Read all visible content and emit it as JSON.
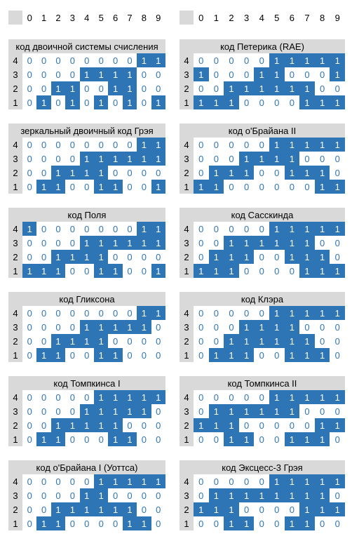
{
  "column_headers": [
    0,
    1,
    2,
    3,
    4,
    5,
    6,
    7,
    8,
    9
  ],
  "blocks": [
    {
      "title": "код двоичной системы счисления",
      "rows": [
        {
          "label": 4,
          "cells": [
            0,
            0,
            0,
            0,
            0,
            0,
            0,
            0,
            1,
            1
          ]
        },
        {
          "label": 3,
          "cells": [
            0,
            0,
            0,
            0,
            1,
            1,
            1,
            1,
            0,
            0
          ]
        },
        {
          "label": 2,
          "cells": [
            0,
            0,
            1,
            1,
            0,
            0,
            1,
            1,
            0,
            0
          ]
        },
        {
          "label": 1,
          "cells": [
            0,
            1,
            0,
            1,
            0,
            1,
            0,
            1,
            0,
            1
          ]
        }
      ]
    },
    {
      "title": "код Петерика (RAE)",
      "rows": [
        {
          "label": 4,
          "cells": [
            0,
            0,
            0,
            0,
            0,
            1,
            1,
            1,
            1,
            1
          ]
        },
        {
          "label": 3,
          "cells": [
            1,
            0,
            0,
            0,
            1,
            1,
            0,
            0,
            0,
            1
          ]
        },
        {
          "label": 2,
          "cells": [
            0,
            0,
            1,
            1,
            1,
            1,
            1,
            1,
            0,
            0
          ]
        },
        {
          "label": 1,
          "cells": [
            1,
            1,
            1,
            0,
            0,
            0,
            0,
            1,
            1,
            1
          ]
        }
      ]
    },
    {
      "title": "зеркальный двоичный код Грэя",
      "rows": [
        {
          "label": 4,
          "cells": [
            0,
            0,
            0,
            0,
            0,
            0,
            0,
            0,
            1,
            1
          ]
        },
        {
          "label": 3,
          "cells": [
            0,
            0,
            0,
            0,
            1,
            1,
            1,
            1,
            1,
            1
          ]
        },
        {
          "label": 2,
          "cells": [
            0,
            0,
            1,
            1,
            1,
            1,
            0,
            0,
            0,
            0
          ]
        },
        {
          "label": 1,
          "cells": [
            0,
            1,
            1,
            0,
            0,
            1,
            1,
            0,
            0,
            1
          ]
        }
      ]
    },
    {
      "title": "код о'Брайана II",
      "rows": [
        {
          "label": 4,
          "cells": [
            0,
            0,
            0,
            0,
            0,
            1,
            1,
            1,
            1,
            1
          ]
        },
        {
          "label": 3,
          "cells": [
            0,
            0,
            0,
            1,
            1,
            1,
            1,
            0,
            0,
            0
          ]
        },
        {
          "label": 2,
          "cells": [
            0,
            1,
            1,
            1,
            0,
            0,
            1,
            1,
            1,
            0
          ]
        },
        {
          "label": 1,
          "cells": [
            1,
            1,
            0,
            0,
            0,
            0,
            0,
            0,
            1,
            1
          ]
        }
      ]
    },
    {
      "title": "код Поля",
      "rows": [
        {
          "label": 4,
          "cells": [
            1,
            0,
            0,
            0,
            0,
            0,
            0,
            0,
            1,
            1
          ]
        },
        {
          "label": 3,
          "cells": [
            0,
            0,
            0,
            0,
            1,
            1,
            1,
            1,
            1,
            1
          ]
        },
        {
          "label": 2,
          "cells": [
            0,
            0,
            1,
            1,
            1,
            1,
            0,
            0,
            0,
            0
          ]
        },
        {
          "label": 1,
          "cells": [
            1,
            1,
            1,
            0,
            0,
            1,
            1,
            0,
            0,
            1
          ]
        }
      ]
    },
    {
      "title": "код Сасскинда",
      "rows": [
        {
          "label": 4,
          "cells": [
            0,
            0,
            0,
            0,
            0,
            1,
            1,
            1,
            1,
            1
          ]
        },
        {
          "label": 3,
          "cells": [
            0,
            0,
            1,
            1,
            1,
            1,
            1,
            1,
            0,
            0
          ]
        },
        {
          "label": 2,
          "cells": [
            0,
            1,
            1,
            1,
            0,
            0,
            1,
            1,
            1,
            0
          ]
        },
        {
          "label": 1,
          "cells": [
            1,
            1,
            1,
            0,
            0,
            0,
            0,
            1,
            1,
            1
          ]
        }
      ]
    },
    {
      "title": "код Гликсона",
      "rows": [
        {
          "label": 4,
          "cells": [
            0,
            0,
            0,
            0,
            0,
            0,
            0,
            0,
            1,
            1
          ]
        },
        {
          "label": 3,
          "cells": [
            0,
            0,
            0,
            0,
            1,
            1,
            1,
            1,
            1,
            0
          ]
        },
        {
          "label": 2,
          "cells": [
            0,
            0,
            1,
            1,
            1,
            1,
            0,
            0,
            0,
            0
          ]
        },
        {
          "label": 1,
          "cells": [
            0,
            1,
            1,
            0,
            0,
            1,
            1,
            0,
            0,
            0
          ]
        }
      ]
    },
    {
      "title": "код Клэра",
      "rows": [
        {
          "label": 4,
          "cells": [
            0,
            0,
            0,
            0,
            0,
            1,
            1,
            1,
            1,
            1
          ]
        },
        {
          "label": 3,
          "cells": [
            0,
            0,
            0,
            1,
            1,
            1,
            1,
            0,
            0,
            0
          ]
        },
        {
          "label": 2,
          "cells": [
            0,
            0,
            1,
            1,
            1,
            1,
            1,
            1,
            0,
            0
          ]
        },
        {
          "label": 1,
          "cells": [
            0,
            1,
            1,
            1,
            0,
            0,
            1,
            1,
            1,
            0
          ]
        }
      ]
    },
    {
      "title": "код Томпкинса I",
      "rows": [
        {
          "label": 4,
          "cells": [
            0,
            0,
            0,
            0,
            0,
            1,
            1,
            1,
            1,
            1
          ]
        },
        {
          "label": 3,
          "cells": [
            0,
            0,
            0,
            0,
            1,
            1,
            1,
            1,
            1,
            0
          ]
        },
        {
          "label": 2,
          "cells": [
            0,
            0,
            1,
            1,
            1,
            1,
            1,
            0,
            0,
            0
          ]
        },
        {
          "label": 1,
          "cells": [
            0,
            1,
            1,
            0,
            0,
            0,
            1,
            1,
            0,
            0
          ]
        }
      ]
    },
    {
      "title": "код Томпкинса II",
      "rows": [
        {
          "label": 4,
          "cells": [
            0,
            0,
            0,
            0,
            0,
            1,
            1,
            1,
            1,
            1
          ]
        },
        {
          "label": 3,
          "cells": [
            0,
            1,
            1,
            1,
            1,
            1,
            1,
            0,
            0,
            0
          ]
        },
        {
          "label": 2,
          "cells": [
            1,
            1,
            1,
            0,
            0,
            0,
            0,
            0,
            1,
            1
          ]
        },
        {
          "label": 1,
          "cells": [
            0,
            0,
            1,
            1,
            0,
            0,
            1,
            1,
            1,
            0
          ]
        }
      ]
    },
    {
      "title": "код о'Брайана I (Уоттса)",
      "rows": [
        {
          "label": 4,
          "cells": [
            0,
            0,
            0,
            0,
            0,
            1,
            1,
            1,
            1,
            1
          ]
        },
        {
          "label": 3,
          "cells": [
            0,
            0,
            0,
            0,
            1,
            1,
            0,
            0,
            0,
            0
          ]
        },
        {
          "label": 2,
          "cells": [
            0,
            0,
            1,
            1,
            1,
            1,
            1,
            1,
            0,
            0
          ]
        },
        {
          "label": 1,
          "cells": [
            0,
            1,
            1,
            0,
            0,
            0,
            0,
            1,
            1,
            0
          ]
        }
      ]
    },
    {
      "title": "код Эксцесс-3 Грэя",
      "rows": [
        {
          "label": 4,
          "cells": [
            0,
            0,
            0,
            0,
            0,
            1,
            1,
            1,
            1,
            1
          ]
        },
        {
          "label": 3,
          "cells": [
            0,
            1,
            1,
            1,
            1,
            1,
            1,
            1,
            1,
            0
          ]
        },
        {
          "label": 2,
          "cells": [
            1,
            1,
            1,
            0,
            0,
            0,
            0,
            1,
            1,
            1
          ]
        },
        {
          "label": 1,
          "cells": [
            0,
            0,
            1,
            1,
            0,
            0,
            1,
            1,
            0,
            0
          ]
        }
      ]
    }
  ]
}
